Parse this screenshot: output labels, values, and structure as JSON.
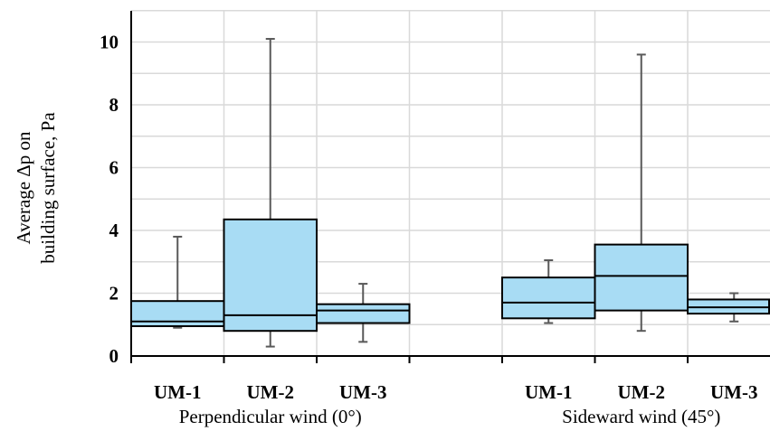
{
  "chart_data": {
    "type": "box",
    "ylabel": [
      "Average Δp on",
      "building surface, Pa"
    ],
    "ylim": [
      0,
      11
    ],
    "yticks": [
      0,
      2,
      4,
      6,
      8,
      10
    ],
    "grid": true,
    "groups": [
      {
        "label": "Perpendicular wind (0°)",
        "boxes": [
          {
            "label": "UM-1",
            "min": 0.9,
            "q1": 0.95,
            "median": 1.1,
            "q3": 1.75,
            "max": 3.8
          },
          {
            "label": "UM-2",
            "min": 0.3,
            "q1": 0.8,
            "median": 1.3,
            "q3": 4.35,
            "max": 10.1
          },
          {
            "label": "UM-3",
            "min": 0.45,
            "q1": 1.05,
            "median": 1.45,
            "q3": 1.65,
            "max": 2.3
          }
        ]
      },
      {
        "label": "Sideward wind (45°)",
        "boxes": [
          {
            "label": "UM-1",
            "min": 1.05,
            "q1": 1.2,
            "median": 1.7,
            "q3": 2.5,
            "max": 3.05
          },
          {
            "label": "UM-2",
            "min": 0.8,
            "q1": 1.45,
            "median": 2.55,
            "q3": 3.55,
            "max": 9.6
          },
          {
            "label": "UM-3",
            "min": 1.1,
            "q1": 1.35,
            "median": 1.55,
            "q3": 1.8,
            "max": 2.0
          }
        ]
      }
    ],
    "colors": {
      "box_fill": "#a8dcf4",
      "box_stroke": "#000000",
      "whisker": "#595959",
      "grid": "#d9d9d9",
      "axis": "#000000"
    }
  }
}
